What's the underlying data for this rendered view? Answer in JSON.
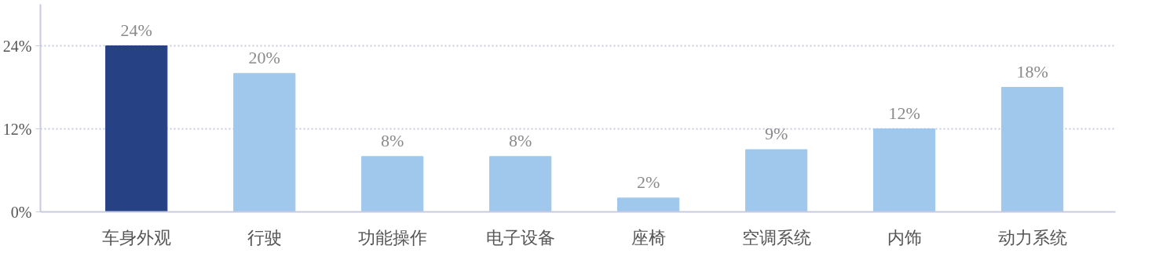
{
  "chart_data": {
    "type": "bar",
    "categories": [
      "车身外观",
      "行驶",
      "功能操作",
      "电子设备",
      "座椅",
      "空调系统",
      "内饰",
      "动力系统"
    ],
    "values": [
      24,
      20,
      8,
      8,
      2,
      9,
      12,
      18
    ],
    "colors": [
      "#264285",
      "#9fc8ec",
      "#9fc8ec",
      "#9fc8ec",
      "#9fc8ec",
      "#9fc8ec",
      "#9fc8ec",
      "#9fc8ec"
    ],
    "value_labels": [
      "24%",
      "20%",
      "8%",
      "8%",
      "2%",
      "9%",
      "12%",
      "18%"
    ],
    "ylim": [
      0,
      30
    ],
    "yticks": [
      {
        "value": 0,
        "label": "0%"
      },
      {
        "value": 12,
        "label": "12%"
      },
      {
        "value": 24,
        "label": "24%"
      }
    ],
    "grid": "y"
  }
}
